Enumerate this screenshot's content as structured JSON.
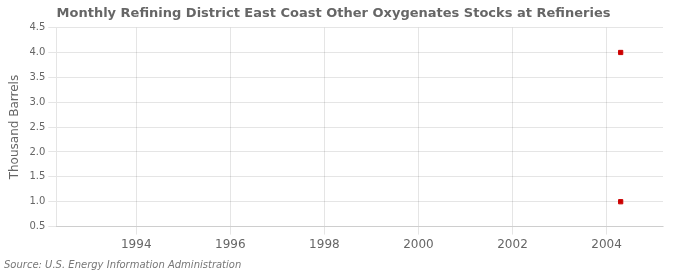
{
  "chart_data": {
    "type": "scatter",
    "title": "Monthly Refining District East Coast Other Oxygenates Stocks at Refineries",
    "ylabel": "Thousand Barrels",
    "source": "Source: U.S. Energy Information Administration",
    "x": [
      2004.3,
      2004.3
    ],
    "values": [
      4.0,
      1.0
    ],
    "color": "#cc0000",
    "marker": "square",
    "xlim": [
      1992.3,
      2005.2
    ],
    "ylim": [
      0.5,
      4.5
    ],
    "xticks": [
      1994,
      1996,
      1998,
      2000,
      2002,
      2004
    ],
    "yticks": [
      0.5,
      {
        "value": 1.0,
        "label": "1.0"
      },
      1.5,
      {
        "value": 2.0,
        "label": "2.0"
      },
      2.5,
      {
        "value": 3.0,
        "label": "3.0"
      },
      3.5,
      {
        "value": 4.0,
        "label": "4.0"
      },
      4.5
    ],
    "grid": true
  }
}
